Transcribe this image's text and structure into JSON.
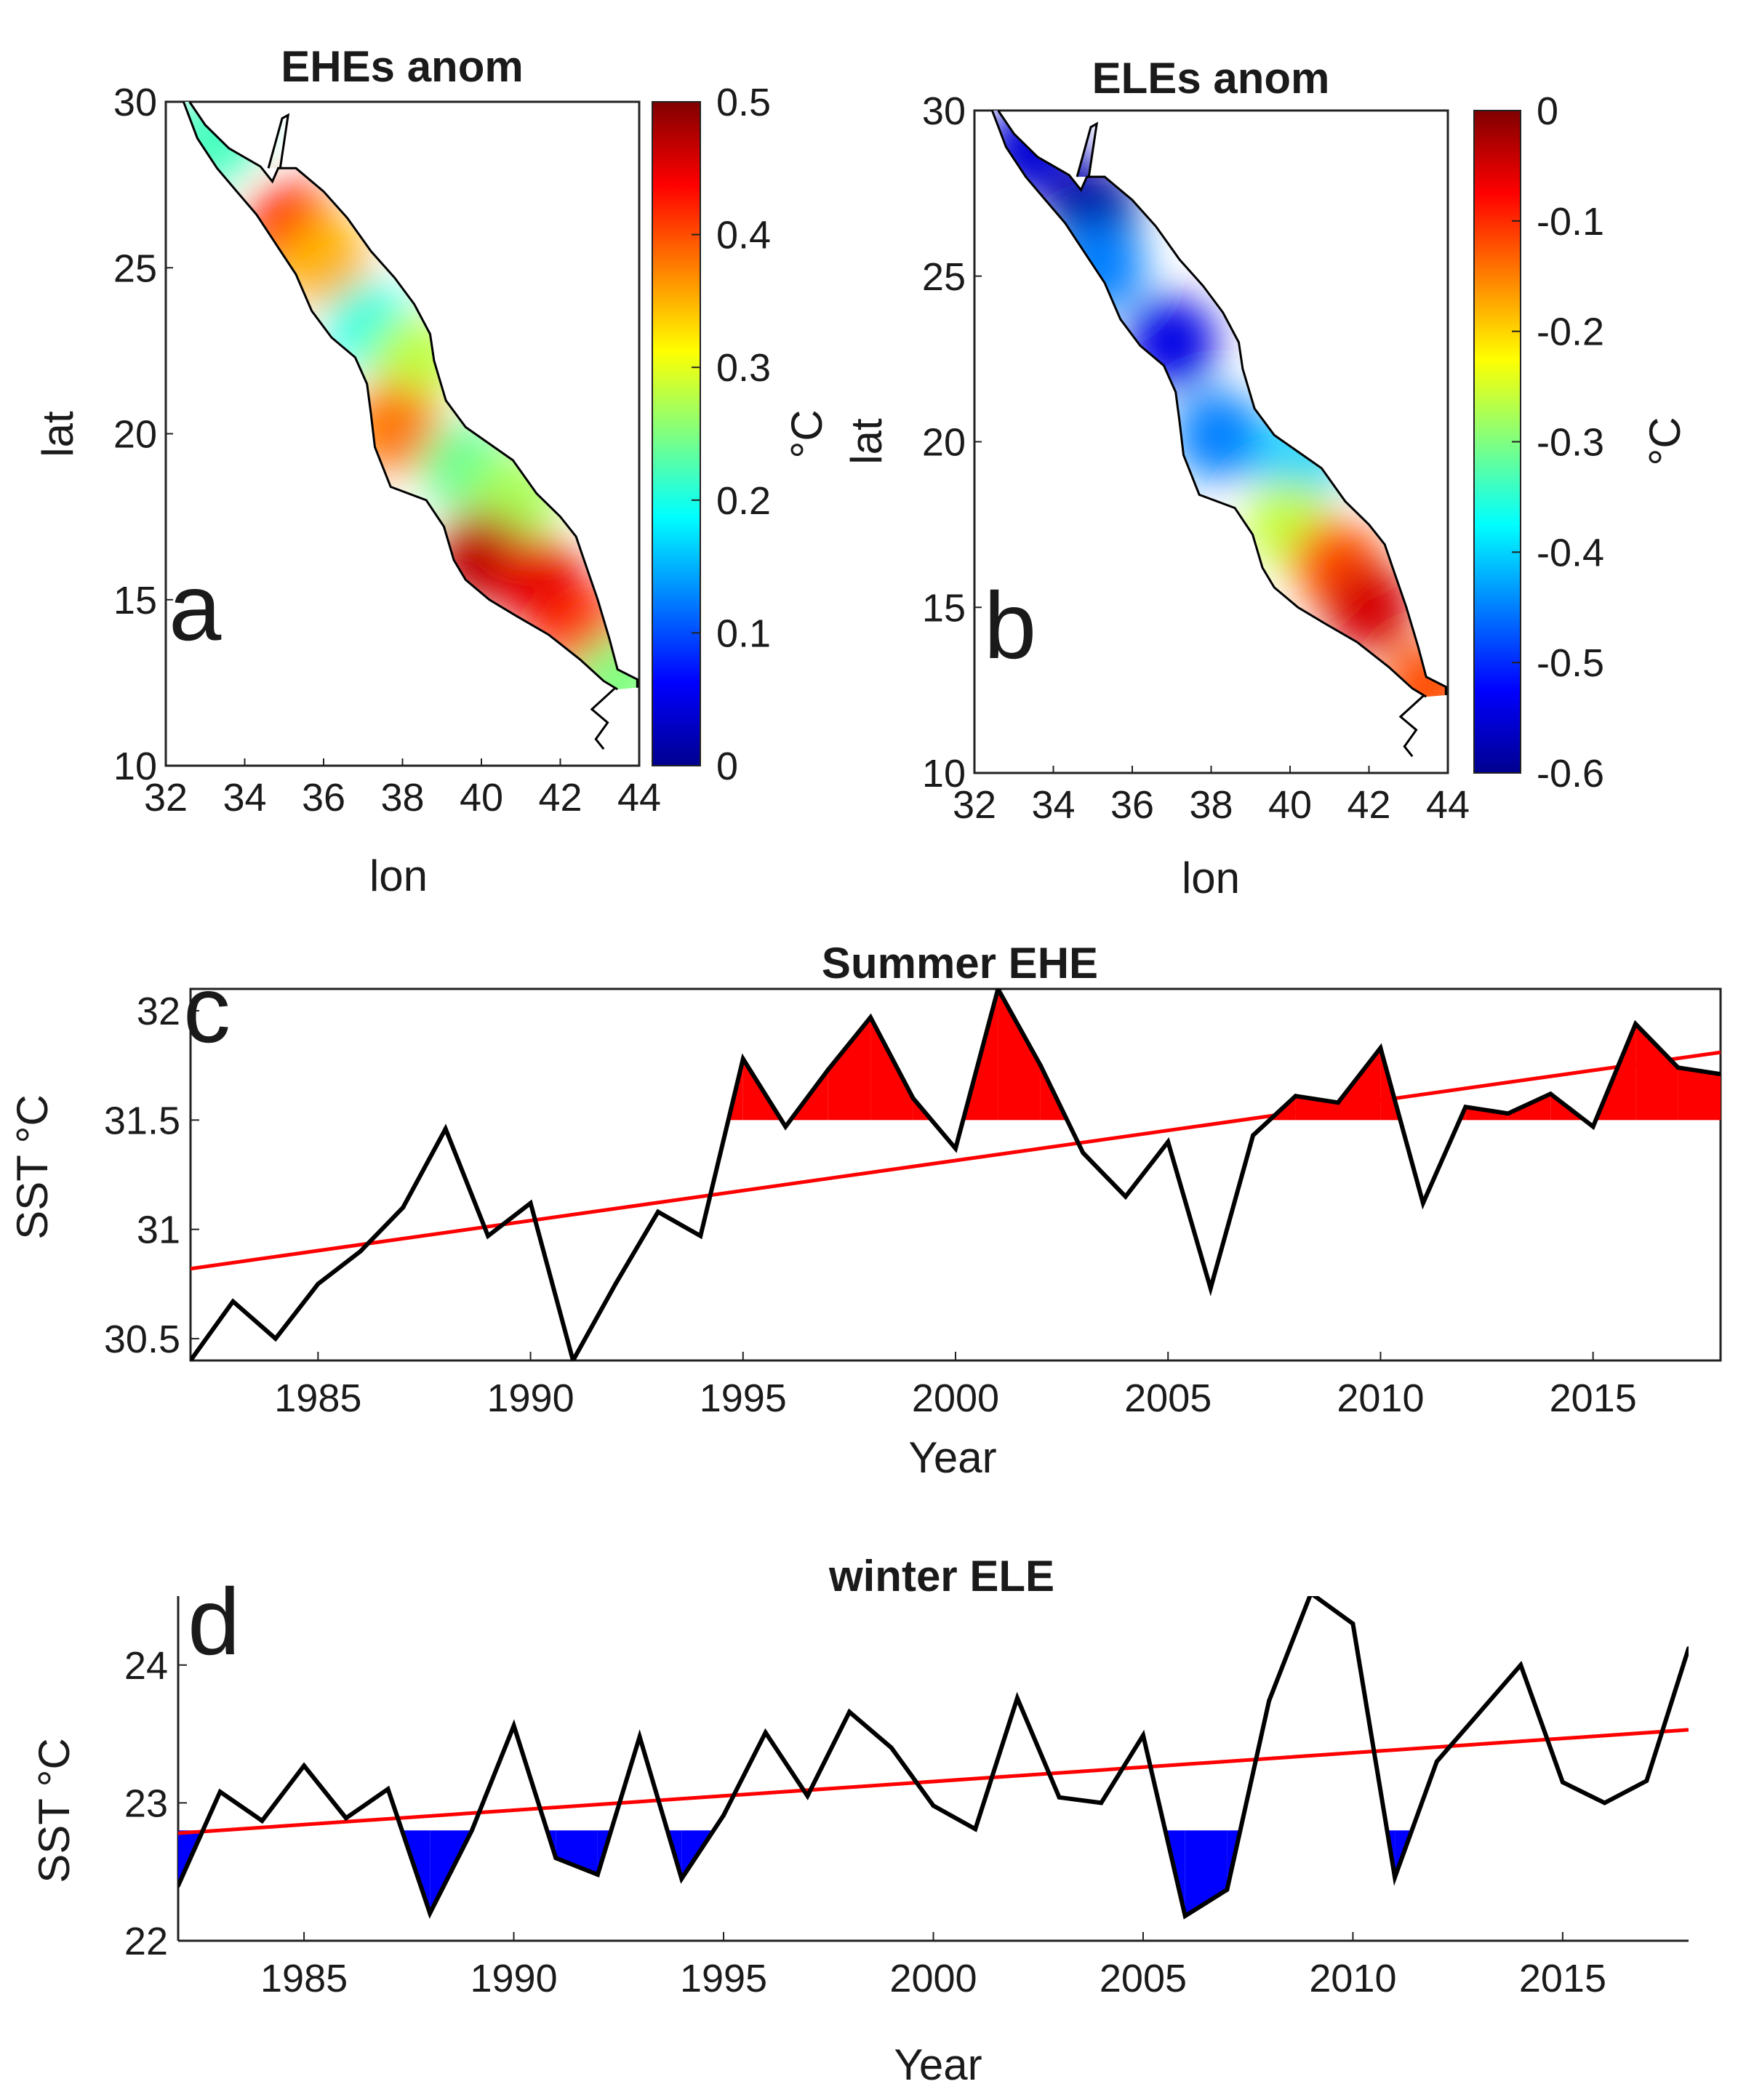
{
  "chart_data": [
    {
      "id": "a",
      "type": "heatmap",
      "panel_label": "a",
      "title": "EHEs anom",
      "xlabel": "lon",
      "ylabel": "lat",
      "xlim": [
        32,
        44
      ],
      "ylim": [
        10,
        30
      ],
      "xticks": [
        32,
        34,
        36,
        38,
        40,
        42,
        44
      ],
      "yticks": [
        10,
        15,
        20,
        25,
        30
      ],
      "colorbar": {
        "label": "°C",
        "range": [
          0,
          0.5
        ],
        "ticks": [
          0,
          0.1,
          0.2,
          0.3,
          0.4,
          0.5
        ],
        "colormap": "jet"
      },
      "field": [
        {
          "lon": 33.2,
          "lat": 28.9,
          "value": 0.22
        },
        {
          "lon": 35.2,
          "lat": 26.2,
          "value": 0.43
        },
        {
          "lon": 36.0,
          "lat": 25.2,
          "value": 0.35
        },
        {
          "lon": 37.2,
          "lat": 23.2,
          "value": 0.2
        },
        {
          "lon": 38.3,
          "lat": 22.2,
          "value": 0.28
        },
        {
          "lon": 37.8,
          "lat": 20.2,
          "value": 0.38
        },
        {
          "lon": 39.6,
          "lat": 19.0,
          "value": 0.24
        },
        {
          "lon": 40.8,
          "lat": 18.0,
          "value": 0.27
        },
        {
          "lon": 40.0,
          "lat": 16.3,
          "value": 0.47
        },
        {
          "lon": 41.5,
          "lat": 15.5,
          "value": 0.45
        },
        {
          "lon": 42.6,
          "lat": 14.0,
          "value": 0.42
        },
        {
          "lon": 43.5,
          "lat": 12.6,
          "value": 0.25
        }
      ]
    },
    {
      "id": "b",
      "type": "heatmap",
      "panel_label": "b",
      "title": "ELEs anom",
      "xlabel": "lon",
      "ylabel": "lat",
      "xlim": [
        32,
        44
      ],
      "ylim": [
        10,
        30
      ],
      "xticks": [
        32,
        34,
        36,
        38,
        40,
        42,
        44
      ],
      "yticks": [
        10,
        15,
        20,
        25,
        30
      ],
      "colorbar": {
        "label": "°C",
        "range": [
          -0.6,
          0
        ],
        "ticks": [
          0,
          -0.1,
          -0.2,
          -0.3,
          -0.4,
          -0.5,
          -0.6
        ],
        "colormap": "jet"
      },
      "field": [
        {
          "lon": 33.4,
          "lat": 28.8,
          "value": -0.55
        },
        {
          "lon": 35.0,
          "lat": 27.0,
          "value": -0.58
        },
        {
          "lon": 35.2,
          "lat": 25.3,
          "value": -0.45
        },
        {
          "lon": 37.0,
          "lat": 23.0,
          "value": -0.54
        },
        {
          "lon": 38.2,
          "lat": 20.2,
          "value": -0.45
        },
        {
          "lon": 40.2,
          "lat": 19.3,
          "value": -0.4
        },
        {
          "lon": 40.0,
          "lat": 17.5,
          "value": -0.26
        },
        {
          "lon": 41.2,
          "lat": 16.3,
          "value": -0.12
        },
        {
          "lon": 42.0,
          "lat": 15.0,
          "value": -0.05
        },
        {
          "lon": 43.5,
          "lat": 12.6,
          "value": -0.12
        }
      ]
    },
    {
      "id": "c",
      "type": "line",
      "panel_label": "c",
      "title": "Summer EHE",
      "xlabel": "Year",
      "ylabel": "SST °C",
      "xlim": [
        1982,
        2018
      ],
      "ylim": [
        30.4,
        32.1
      ],
      "xticks": [
        1985,
        1990,
        1995,
        2000,
        2005,
        2010,
        2015
      ],
      "yticks": [
        30.5,
        31,
        31.5,
        32
      ],
      "threshold": 31.5,
      "fill_color": "#ff0000",
      "fill_side": "above",
      "x": [
        1982,
        1983,
        1984,
        1985,
        1986,
        1987,
        1988,
        1989,
        1990,
        1991,
        1992,
        1993,
        1994,
        1995,
        1996,
        1997,
        1998,
        1999,
        2000,
        2001,
        2002,
        2003,
        2004,
        2005,
        2006,
        2007,
        2008,
        2009,
        2010,
        2011,
        2012,
        2013,
        2014,
        2015,
        2016,
        2017,
        2018
      ],
      "series": [
        {
          "name": "SST",
          "color": "#000000",
          "values": [
            30.4,
            30.67,
            30.5,
            30.75,
            30.9,
            31.1,
            31.46,
            30.97,
            31.12,
            30.4,
            30.75,
            31.08,
            30.97,
            31.78,
            31.47,
            31.73,
            31.97,
            31.6,
            31.37,
            32.1,
            31.75,
            31.35,
            31.15,
            31.4,
            30.73,
            31.43,
            31.61,
            31.58,
            31.83,
            31.12,
            31.56,
            31.53,
            31.62,
            31.47,
            31.94,
            31.74,
            31.71
          ]
        },
        {
          "name": "trend",
          "color": "#ff0000",
          "values_at_ends": [
            30.82,
            31.81
          ]
        }
      ]
    },
    {
      "id": "d",
      "type": "line",
      "panel_label": "d",
      "title": "winter ELE",
      "xlabel": "Year",
      "ylabel": "SST °C",
      "xlim": [
        1982,
        2018
      ],
      "ylim": [
        22,
        24.5
      ],
      "xticks": [
        1985,
        1990,
        1995,
        2000,
        2005,
        2010,
        2015
      ],
      "yticks": [
        22,
        23,
        24
      ],
      "threshold": 22.8,
      "fill_color": "#0000ff",
      "fill_side": "below",
      "x": [
        1982,
        1983,
        1984,
        1985,
        1986,
        1987,
        1988,
        1989,
        1990,
        1991,
        1992,
        1993,
        1994,
        1995,
        1996,
        1997,
        1998,
        1999,
        2000,
        2001,
        2002,
        2003,
        2004,
        2005,
        2006,
        2007,
        2008,
        2009,
        2010,
        2011,
        2012,
        2013,
        2014,
        2015,
        2016,
        2017,
        2018
      ],
      "series": [
        {
          "name": "SST",
          "color": "#000000",
          "values": [
            22.4,
            23.08,
            22.87,
            23.27,
            22.89,
            23.1,
            22.2,
            22.8,
            23.56,
            22.6,
            22.48,
            23.48,
            22.45,
            22.91,
            23.51,
            23.05,
            23.66,
            23.4,
            22.98,
            22.81,
            23.76,
            23.04,
            23.0,
            23.49,
            22.18,
            22.37,
            23.74,
            24.52,
            24.3,
            22.46,
            23.3,
            23.65,
            24.0,
            23.15,
            23.0,
            23.16,
            24.12
          ]
        },
        {
          "name": "trend",
          "color": "#ff0000",
          "values_at_ends": [
            22.78,
            23.53
          ]
        }
      ]
    }
  ]
}
